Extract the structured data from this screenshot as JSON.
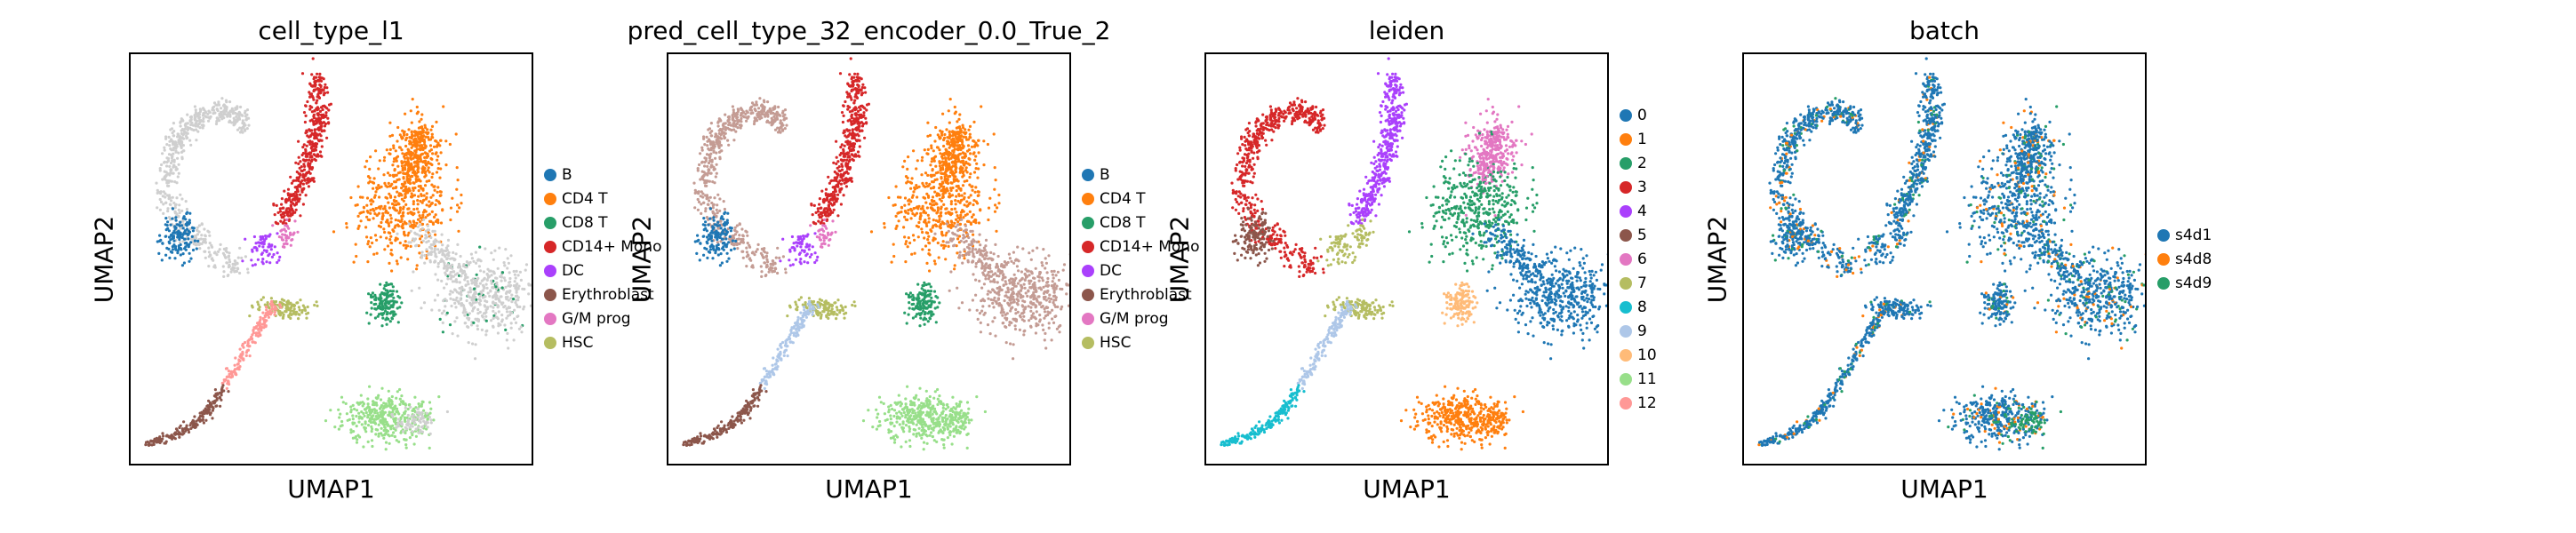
{
  "chart_data": [
    {
      "type": "scatter",
      "title": "cell_type_l1",
      "xlabel": "UMAP1",
      "ylabel": "UMAP2",
      "grid": false,
      "legend_position": "right",
      "categories": [
        {
          "name": "B",
          "color": "#1f77b4"
        },
        {
          "name": "CD4 T",
          "color": "#ff7f0e"
        },
        {
          "name": "CD8 T",
          "color": "#279e68"
        },
        {
          "name": "CD14+ Mono",
          "color": "#d62728"
        },
        {
          "name": "DC",
          "color": "#aa40fc"
        },
        {
          "name": "Erythroblast",
          "color": "#8c564b"
        },
        {
          "name": "G/M prog",
          "color": "#e377c2"
        },
        {
          "name": "HSC",
          "color": "#b5bd61"
        }
      ]
    },
    {
      "type": "scatter",
      "title": "pred_cell_type_32_encoder_0.0_True_2",
      "xlabel": "UMAP1",
      "ylabel": "UMAP2",
      "grid": false,
      "legend_position": "right",
      "categories": [
        {
          "name": "B",
          "color": "#1f77b4"
        },
        {
          "name": "CD4 T",
          "color": "#ff7f0e"
        },
        {
          "name": "CD8 T",
          "color": "#279e68"
        },
        {
          "name": "CD14+ Mono",
          "color": "#d62728"
        },
        {
          "name": "DC",
          "color": "#aa40fc"
        },
        {
          "name": "Erythroblast",
          "color": "#8c564b"
        },
        {
          "name": "G/M prog",
          "color": "#e377c2"
        },
        {
          "name": "HSC",
          "color": "#b5bd61"
        }
      ]
    },
    {
      "type": "scatter",
      "title": "leiden",
      "xlabel": "UMAP1",
      "ylabel": "UMAP2",
      "grid": false,
      "legend_position": "right",
      "categories": [
        {
          "name": "0",
          "color": "#1f77b4"
        },
        {
          "name": "1",
          "color": "#ff7f0e"
        },
        {
          "name": "2",
          "color": "#279e68"
        },
        {
          "name": "3",
          "color": "#d62728"
        },
        {
          "name": "4",
          "color": "#aa40fc"
        },
        {
          "name": "5",
          "color": "#8c564b"
        },
        {
          "name": "6",
          "color": "#e377c2"
        },
        {
          "name": "7",
          "color": "#b5bd61"
        },
        {
          "name": "8",
          "color": "#17becf"
        },
        {
          "name": "9",
          "color": "#aec7e8"
        },
        {
          "name": "10",
          "color": "#ffbb78"
        },
        {
          "name": "11",
          "color": "#98df8a"
        },
        {
          "name": "12",
          "color": "#ff9896"
        }
      ]
    },
    {
      "type": "scatter",
      "title": "batch",
      "xlabel": "UMAP1",
      "ylabel": "UMAP2",
      "grid": false,
      "legend_position": "right",
      "categories": [
        {
          "name": "s4d1",
          "color": "#1f77b4"
        },
        {
          "name": "s4d8",
          "color": "#ff7f0e"
        },
        {
          "name": "s4d9",
          "color": "#279e68"
        }
      ]
    }
  ]
}
